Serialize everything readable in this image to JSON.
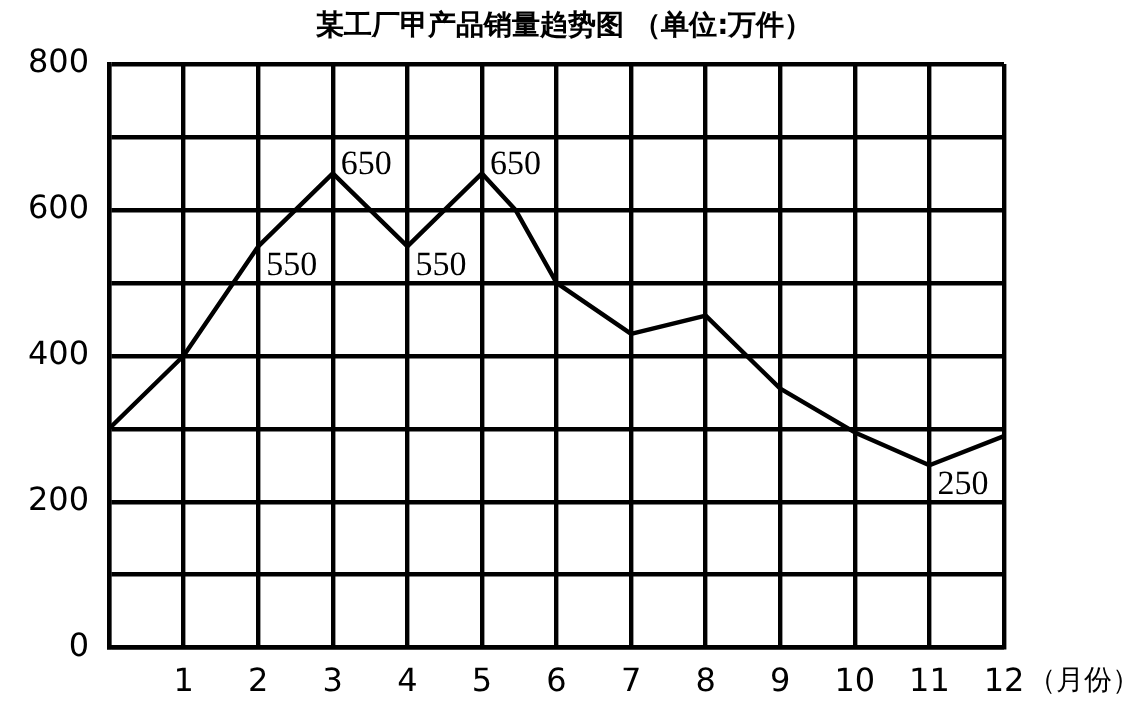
{
  "chart_data": {
    "type": "line",
    "title": "某工厂甲产品销量趋势图 （单位:万件）",
    "xlabel": "（月份）",
    "x": [
      0,
      1,
      2,
      3,
      4,
      5,
      5.45,
      6,
      7,
      8,
      9,
      10,
      11,
      12
    ],
    "series": [
      {
        "color": "#000000",
        "values": [
          300,
          400,
          550,
          650,
          550,
          650,
          600,
          500,
          430,
          455,
          355,
          295,
          250,
          290
        ],
        "value_labels": [
          null,
          null,
          "550",
          "650",
          "550",
          "650",
          null,
          null,
          null,
          null,
          null,
          null,
          "250",
          null
        ]
      }
    ],
    "xlim": [
      0,
      12
    ],
    "xticks": [
      {
        "value": 0,
        "label": null
      },
      1,
      2,
      3,
      4,
      5,
      6,
      7,
      8,
      9,
      10,
      11,
      12
    ],
    "ylim": [
      0,
      800
    ],
    "yticks": [
      0,
      {
        "value": 100,
        "label": null
      },
      200,
      {
        "value": 300,
        "label": null
      },
      400,
      {
        "value": 500,
        "label": null
      },
      600,
      {
        "value": 700,
        "label": null
      },
      800
    ],
    "grid": true,
    "legend": false,
    "marker": "none",
    "line_style": "solid"
  }
}
